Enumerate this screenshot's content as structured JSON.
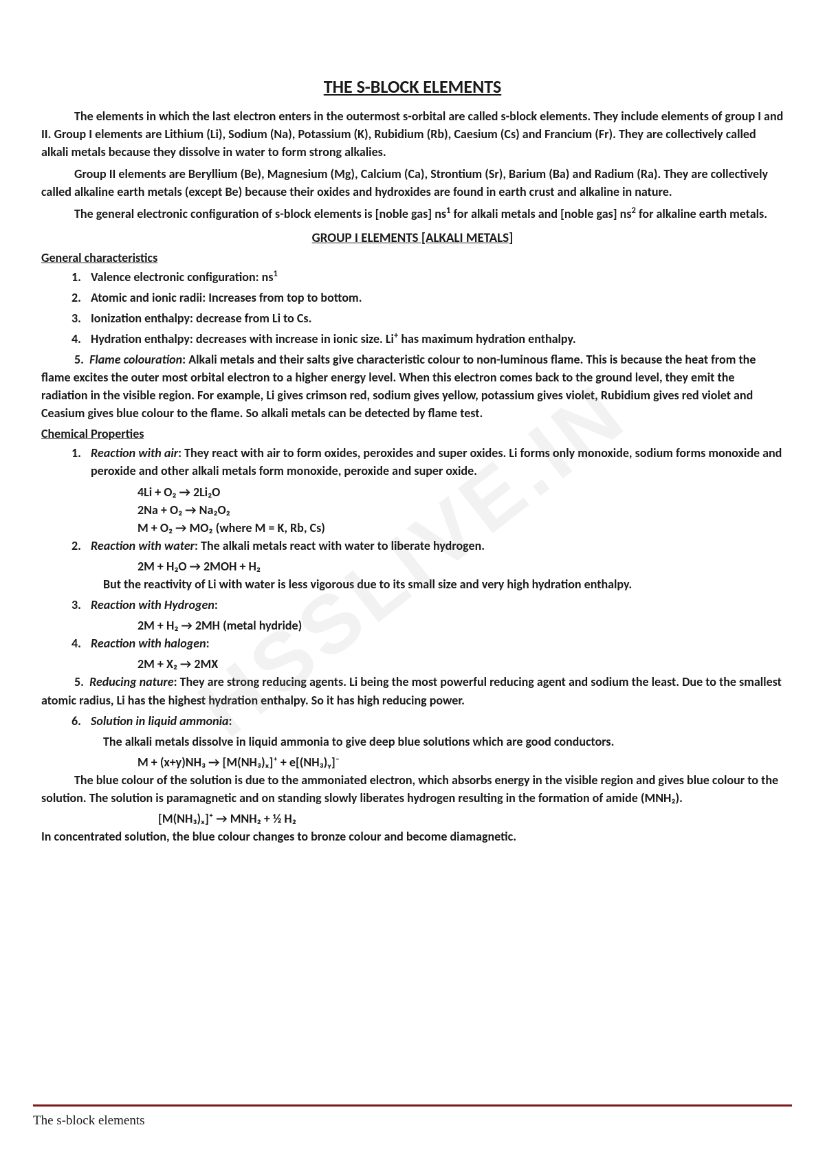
{
  "title": "THE S-BLOCK ELEMENTS",
  "intro": {
    "p1": "The elements in which the last electron enters in the outermost s-orbital are called s-block elements. They include elements of group I and II. Group I elements are Lithium (Li), Sodium (Na), Potassium (K), Rubidium (Rb), Caesium (Cs) and Francium (Fr). They are collectively called alkali metals because they dissolve in water to form strong alkalies.",
    "p2": "Group II elements are Beryllium (Be), Magnesium (Mg), Calcium (Ca), Strontium (Sr), Barium (Ba) and Radium (Ra). They are collectively called alkaline earth metals (except Be) because their oxides and hydroxides are found in earth crust and alkaline in nature.",
    "p3a": "The general electronic configuration of s-block elements is [noble gas] ns",
    "p3b": " for alkali metals and [noble gas] ns",
    "p3c": " for alkaline earth metals."
  },
  "section1_title": "GROUP I ELEMENTS [ALKALI METALS]",
  "gen_char_heading": "General characteristics",
  "gen_char": {
    "i1a": "Valence electronic configuration: ns",
    "i2": "Atomic and ionic radii: Increases from top to bottom.",
    "i3": "Ionization enthalpy: decrease from Li to Cs.",
    "i4a": "Hydration enthalpy: decreases with increase in ionic size. Li",
    "i4b": " has maximum hydration enthalpy.",
    "i5_label": "Flame colouration",
    "i5_body": ": Alkali metals and their salts give characteristic colour to non-luminous flame. This is because the heat from the flame excites the outer most orbital electron to a higher energy level. When this electron comes back to the ground level, they emit the radiation in the visible region. For example, Li gives crimson red, sodium gives yellow, potassium gives violet, Rubidium gives red violet and Ceasium gives blue colour to the flame. So alkali metals can be detected by flame test."
  },
  "chem_prop_heading": "Chemical Properties",
  "chem": {
    "r1_label": "Reaction with air",
    "r1_body": ": They react with air to form oxides, peroxides and super oxides. Li forms only monoxide, sodium forms monoxide and peroxide and other alkali metals form monoxide, peroxide and super oxide.",
    "eq1": "4Li + O₂ → 2Li₂O",
    "eq2": "2Na + O₂ → Na₂O₂",
    "eq3": "M + O₂ → MO₂ (where M = K, Rb, Cs)",
    "r2_label": "Reaction with water",
    "r2_body": ": The alkali metals react with water to liberate hydrogen.",
    "eq4": "2M + H₂O → 2MOH + H₂",
    "r2_note": "But the reactivity of Li with water is less vigorous due to its small size and very high hydration enthalpy.",
    "r3_label": "Reaction with Hydrogen",
    "eq5": "2M + H₂ → 2MH (metal hydride)",
    "r4_label": "Reaction with halogen",
    "eq6": "2M + X₂ → 2MX",
    "r5_label": "Reducing nature",
    "r5_body": ": They are strong reducing agents. Li being the most powerful reducing agent and sodium the least. Due to the smallest atomic radius, Li has the highest hydration enthalpy. So it has high reducing power.",
    "r6_label": "Solution in liquid ammonia",
    "r6_body1": "The alkali metals dissolve in liquid ammonia to give deep blue solutions which are good conductors.",
    "eq7": "M + (x+y)NH₃ → [M(NH₃)ₓ]⁺ + e[(NH₃)ᵧ]⁻",
    "r6_body2": "The blue colour of the solution is due to the ammoniated electron, which absorbs energy in the visible region and gives blue colour to the solution. The solution is paramagnetic and on standing slowly liberates hydrogen resulting in the formation of amide (MNH₂).",
    "eq8": "[M(NH₃)ₓ]⁺ → MNH₂ + ½ H₂",
    "r6_body3": "In concentrated solution, the blue colour changes to bronze colour and become diamagnetic."
  },
  "footer": "The s-block elements",
  "watermark": "HSSLIVE.IN"
}
